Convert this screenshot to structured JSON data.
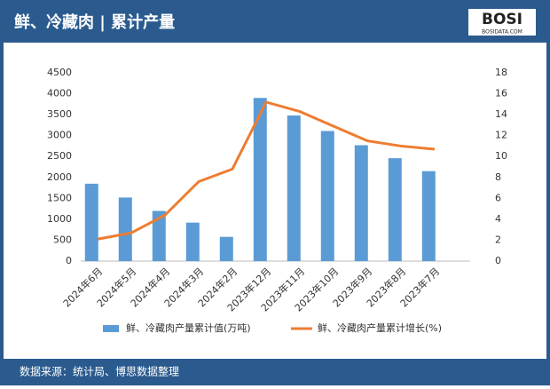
{
  "header": {
    "title": "鲜、冷藏肉 | 累计产量",
    "logo": "BOSI",
    "logo_sub": "BOSIDATA.COM"
  },
  "footer": {
    "source": "数据来源：统计局、博思数据整理"
  },
  "chart_data": {
    "type": "bar",
    "categories": [
      "2024年6月",
      "2024年5月",
      "2024年4月",
      "2024年3月",
      "2024年2月",
      "2023年12月",
      "2023年11月",
      "2023年10月",
      "2023年9月",
      "2023年8月",
      "2023年7月"
    ],
    "series": [
      {
        "name": "鲜、冷藏肉产量累计值(万吨)",
        "color": "#5b9bd5",
        "type": "bar",
        "values": [
          1850,
          1520,
          1200,
          920,
          580,
          3900,
          3480,
          3110,
          2770,
          2460,
          2150
        ]
      },
      {
        "name": "鲜、冷藏肉产量累计增长(%)",
        "color": "#ed7d31",
        "type": "line",
        "axis": "y2",
        "values": [
          2.1,
          2.7,
          4.4,
          7.6,
          8.8,
          15.2,
          14.3,
          12.9,
          11.5,
          11.0,
          10.7
        ]
      }
    ],
    "ylim": [
      0,
      4500
    ],
    "yticks": [
      0,
      500,
      1000,
      1500,
      2000,
      2500,
      3000,
      3500,
      4000,
      4500
    ],
    "y2lim": [
      0,
      18
    ],
    "y2ticks": [
      0,
      2,
      4,
      6,
      8,
      10,
      12,
      14,
      16,
      18
    ],
    "legend": "bottom"
  }
}
